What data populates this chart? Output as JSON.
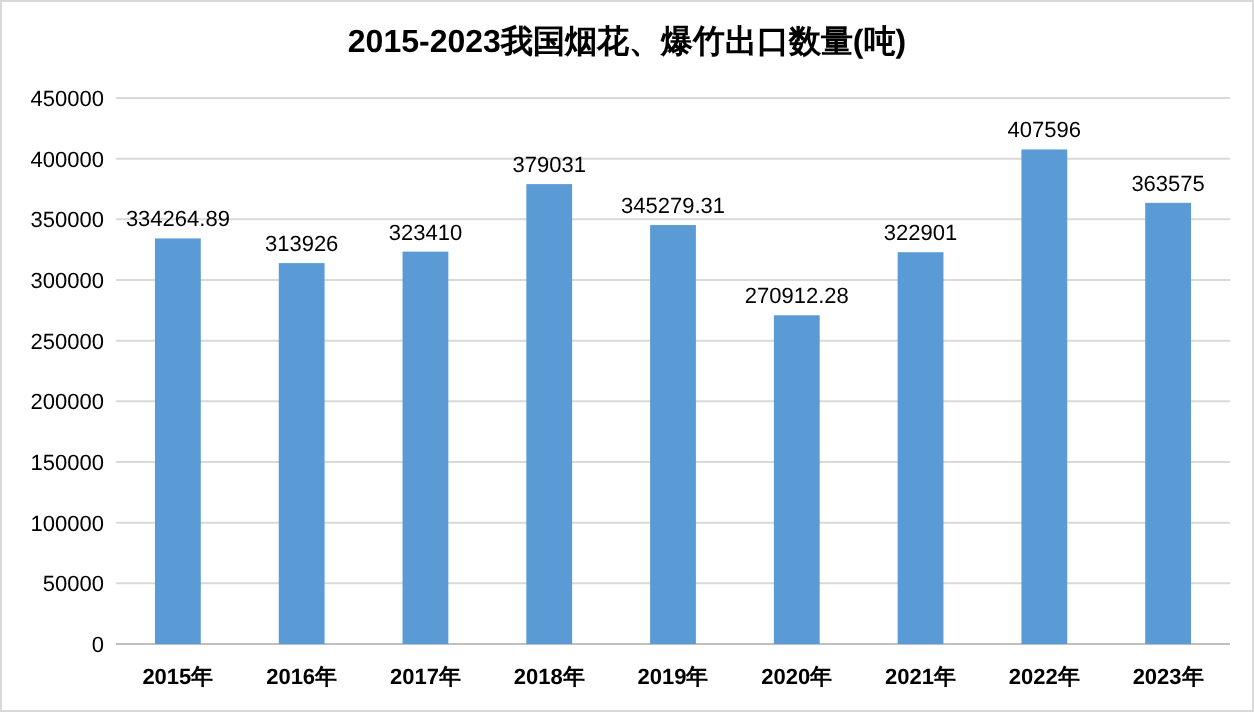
{
  "chart_data": {
    "type": "bar",
    "title": "2015-2023我国烟花、爆竹出口数量(吨)",
    "categories": [
      "2015年",
      "2016年",
      "2017年",
      "2018年",
      "2019年",
      "2020年",
      "2021年",
      "2022年",
      "2023年"
    ],
    "values": [
      334264.89,
      313926,
      323410,
      379031,
      345279.31,
      270912.28,
      322901,
      407596,
      363575
    ],
    "color": "#5b9bd5",
    "ylim": [
      0,
      450000
    ],
    "yticks": [
      0,
      50000,
      100000,
      150000,
      200000,
      250000,
      300000,
      350000,
      400000,
      450000
    ],
    "grid": "y",
    "data_labels": true
  }
}
